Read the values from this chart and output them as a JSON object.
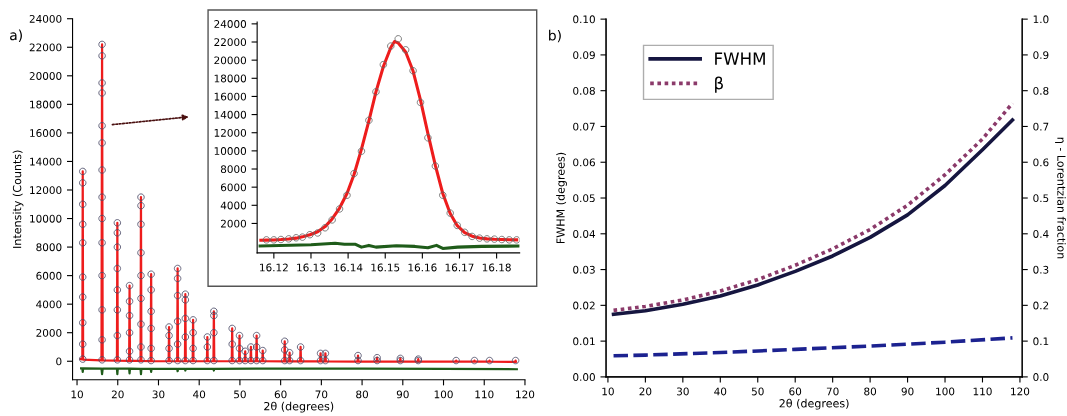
{
  "chart_data": [
    {
      "type": "line",
      "title": "a)",
      "xlabel": "2θ (degrees)",
      "ylabel": "Intensity (Counts)",
      "xlim": [
        8.9,
        120
      ],
      "ylim": [
        -1300,
        24000
      ],
      "xticks": [
        10,
        20,
        30,
        40,
        50,
        60,
        70,
        80,
        90,
        100,
        110,
        120
      ],
      "yticks": [
        0,
        2000,
        4000,
        6000,
        8000,
        10000,
        12000,
        14000,
        16000,
        18000,
        20000,
        22000,
        24000
      ],
      "grid": false,
      "series": [
        {
          "type": "scatter",
          "color": "#4a4a66",
          "marker": "circle",
          "x": [
            11.4,
            11.4,
            11.4,
            11.4,
            11.4,
            11.4,
            11.4,
            11.4,
            11.4,
            11.4,
            16.15,
            16.15,
            16.15,
            16.15,
            16.15,
            16.15,
            16.15,
            16.15,
            16.15,
            16.15,
            16.15,
            16.15,
            16.15,
            16.15,
            19.9,
            19.9,
            19.9,
            19.9,
            19.9,
            19.9,
            19.9,
            19.9,
            22.9,
            22.9,
            22.9,
            22.9,
            22.9,
            22.9,
            25.7,
            25.7,
            25.7,
            25.7,
            25.7,
            25.7,
            25.7,
            25.7,
            25.7,
            28.2,
            28.2,
            28.2,
            28.2,
            28.2,
            28.2,
            32.6,
            32.6,
            32.6,
            32.6,
            34.7,
            34.7,
            34.7,
            34.7,
            34.7,
            34.7,
            36.6,
            36.6,
            36.6,
            36.6,
            36.6,
            38.5,
            38.5,
            38.5,
            38.5,
            42.0,
            42.0,
            42.0,
            43.6,
            43.6,
            43.6,
            43.6,
            48.1,
            48.1,
            48.1,
            49.9,
            49.9,
            49.9,
            51.3,
            51.3,
            52.7,
            52.7,
            54.1,
            54.1,
            54.1,
            55.6,
            55.6,
            61.0,
            61.0,
            61.0,
            62.2,
            62.2,
            64.9,
            64.9,
            69.8,
            69.8,
            71.0,
            71.0,
            79.0,
            79.0,
            83.7,
            83.7,
            89.4,
            89.4,
            93.8,
            93.8,
            103.1,
            107.6,
            111.3,
            117.7
          ],
          "values": [
            13300,
            12500,
            11000,
            9600,
            8300,
            5900,
            4500,
            2700,
            1200,
            150,
            22200,
            21400,
            19500,
            18800,
            16500,
            15300,
            13400,
            11500,
            10000,
            8300,
            6000,
            3600,
            1500,
            100,
            9700,
            9000,
            8000,
            6500,
            5000,
            3600,
            1800,
            100,
            5300,
            4200,
            3200,
            2000,
            700,
            100,
            11500,
            10900,
            9600,
            7600,
            6000,
            4400,
            2600,
            1000,
            100,
            6100,
            5000,
            3500,
            2300,
            900,
            50,
            2400,
            1800,
            900,
            50,
            6500,
            5800,
            4600,
            2800,
            1200,
            50,
            4700,
            4300,
            3000,
            1700,
            50,
            2900,
            2000,
            900,
            50,
            1700,
            1000,
            50,
            3500,
            3200,
            2000,
            50,
            2300,
            1200,
            50,
            1800,
            900,
            50,
            700,
            50,
            1000,
            50,
            1800,
            1000,
            50,
            750,
            50,
            1400,
            800,
            50,
            600,
            50,
            1000,
            50,
            550,
            50,
            550,
            50,
            400,
            50,
            250,
            50,
            200,
            50,
            150,
            50,
            50,
            50,
            50,
            50
          ]
        },
        {
          "color": "#ee1c1c",
          "marker": "none",
          "line_style": "solid",
          "x": [
            10.9,
            11.3,
            11.4,
            11.5,
            16.0,
            16.15,
            16.3,
            19.8,
            19.9,
            20.0,
            22.8,
            22.9,
            23.0,
            25.6,
            25.7,
            25.8,
            28.1,
            28.2,
            28.3,
            32.5,
            32.6,
            32.7,
            34.6,
            34.7,
            34.8,
            36.5,
            36.6,
            36.7,
            38.4,
            38.5,
            38.6,
            41.9,
            42.0,
            42.1,
            43.5,
            43.6,
            43.7,
            48.0,
            48.1,
            48.2,
            49.8,
            49.9,
            50.0,
            51.2,
            51.3,
            51.4,
            52.6,
            52.7,
            52.8,
            54.0,
            54.1,
            54.2,
            55.5,
            55.6,
            55.7,
            60.9,
            61.0,
            61.1,
            62.1,
            62.2,
            62.3,
            64.8,
            64.9,
            65.0,
            69.7,
            69.8,
            69.9,
            70.9,
            71.0,
            71.1,
            78.9,
            79.0,
            79.1,
            83.6,
            83.7,
            83.8,
            89.3,
            89.4,
            89.5,
            93.7,
            93.8,
            93.9,
            103.0,
            103.1,
            103.2,
            107.5,
            107.6,
            107.7,
            111.2,
            111.3,
            111.4,
            117.6,
            117.7,
            117.8
          ],
          "values": [
            150,
            130,
            13300,
            120,
            60,
            22200,
            60,
            40,
            9700,
            40,
            30,
            5300,
            30,
            20,
            11500,
            20,
            10,
            6100,
            10,
            0,
            2400,
            0,
            0,
            6500,
            0,
            0,
            4700,
            0,
            0,
            2900,
            0,
            0,
            1700,
            0,
            0,
            3500,
            0,
            0,
            2300,
            0,
            0,
            1800,
            0,
            0,
            700,
            0,
            0,
            1000,
            0,
            0,
            1800,
            0,
            0,
            750,
            0,
            -10,
            1400,
            -10,
            -10,
            600,
            -10,
            -10,
            1000,
            -10,
            -10,
            550,
            -10,
            -10,
            550,
            -10,
            -20,
            400,
            -20,
            -20,
            250,
            -20,
            -20,
            200,
            -20,
            -20,
            150,
            -20,
            -30,
            50,
            -30,
            -30,
            50,
            -30,
            -30,
            50,
            -30,
            -40,
            50,
            -40
          ]
        },
        {
          "color": "#1f5c1a",
          "marker": "none",
          "line_style": "solid",
          "x": [
            11.0,
            11.3,
            11.4,
            11.5,
            16.0,
            16.15,
            16.3,
            19.8,
            19.9,
            20.0,
            22.8,
            22.9,
            23.0,
            25.6,
            25.7,
            25.8,
            28.1,
            28.2,
            28.3,
            34.6,
            34.7,
            34.8,
            36.5,
            36.6,
            36.7,
            43.5,
            43.6,
            43.7,
            60,
            80,
            100,
            118
          ],
          "values": [
            -500,
            -500,
            -750,
            -500,
            -520,
            -900,
            -520,
            -520,
            -900,
            -520,
            -520,
            -850,
            -520,
            -530,
            -900,
            -530,
            -530,
            -750,
            -530,
            -530,
            -700,
            -530,
            -530,
            -650,
            -530,
            -530,
            -650,
            -530,
            -520,
            -520,
            -540,
            -560
          ]
        }
      ]
    },
    {
      "type": "line",
      "xlim": [
        16.1155,
        16.1862
      ],
      "ylim": [
        -1250,
        24200
      ],
      "xticks": [
        16.12,
        16.13,
        16.14,
        16.15,
        16.16,
        16.17,
        16.18
      ],
      "yticks": [
        2000,
        4000,
        6000,
        8000,
        10000,
        12000,
        14000,
        16000,
        18000,
        20000,
        22000,
        24000
      ],
      "grid": false,
      "series": [
        {
          "color": "#ee1c1c",
          "marker": "none",
          "line_style": "solid",
          "x": [
            16.1165,
            16.118,
            16.12,
            16.1219,
            16.124,
            16.126,
            16.1277,
            16.1297,
            16.1318,
            16.1338,
            16.1357,
            16.1377,
            16.1397,
            16.1416,
            16.1436,
            16.1456,
            16.1475,
            16.1495,
            16.1515,
            16.1525,
            16.1535,
            16.1555,
            16.1575,
            16.1595,
            16.1615,
            16.1635,
            16.1655,
            16.1675,
            16.1694,
            16.1714,
            16.1734,
            16.1754,
            16.1774,
            16.1794,
            16.1814,
            16.1834,
            16.1854
          ],
          "values": [
            150,
            160,
            180,
            220,
            290,
            380,
            520,
            750,
            1080,
            1650,
            2500,
            3700,
            5300,
            7400,
            10200,
            13300,
            16500,
            19300,
            21400,
            22050,
            21900,
            20900,
            18800,
            15600,
            11900,
            8400,
            5300,
            3100,
            1750,
            1000,
            600,
            400,
            300,
            250,
            220,
            200,
            190
          ]
        },
        {
          "type": "scatter",
          "color": "#666666",
          "marker": "circle",
          "x": [
            16.118,
            16.12,
            16.1219,
            16.124,
            16.126,
            16.1277,
            16.1297,
            16.1318,
            16.1338,
            16.1357,
            16.1377,
            16.1397,
            16.1416,
            16.1436,
            16.1456,
            16.1475,
            16.1495,
            16.1515,
            16.1535,
            16.1555,
            16.1575,
            16.1595,
            16.1615,
            16.1635,
            16.1655,
            16.1675,
            16.1694,
            16.1714,
            16.1734,
            16.1754,
            16.1774,
            16.1794,
            16.1814,
            16.1834,
            16.1854
          ],
          "values": [
            190,
            190,
            230,
            300,
            420,
            490,
            760,
            950,
            1520,
            2390,
            3600,
            5110,
            7500,
            9960,
            13370,
            16510,
            19510,
            21550,
            22350,
            21140,
            18830,
            15340,
            11440,
            8330,
            5110,
            3140,
            1780,
            1020,
            570,
            380,
            300,
            270,
            230,
            190,
            190
          ]
        },
        {
          "color": "#1f5c1a",
          "marker": "none",
          "line_style": "solid",
          "x": [
            16.1163,
            16.13,
            16.1365,
            16.139,
            16.142,
            16.1436,
            16.1456,
            16.1475,
            16.153,
            16.158,
            16.1615,
            16.1638,
            16.1655,
            16.1695,
            16.176,
            16.1858
          ],
          "values": [
            -490,
            -340,
            -190,
            -300,
            -300,
            -610,
            -420,
            -610,
            -450,
            -530,
            -680,
            -420,
            -760,
            -610,
            -530,
            -490
          ]
        }
      ]
    },
    {
      "type": "line",
      "title": "b)",
      "xlabel": "2θ (degrees)",
      "ylabel": "FWHM (degrees)",
      "y2label": "η - Lorentzian fraction",
      "xlim": [
        9.5,
        120.6
      ],
      "ylim": [
        0,
        0.1
      ],
      "y2lim": [
        0,
        1.0
      ],
      "legend": "top left",
      "grid": false,
      "xticks": [
        10,
        20,
        30,
        40,
        50,
        60,
        70,
        80,
        90,
        100,
        110,
        120
      ],
      "yticks": [
        {
          "value": 0,
          "label": "0.00"
        },
        {
          "value": 0.01,
          "label": "0.01"
        },
        {
          "value": 0.02,
          "label": "0.02"
        },
        {
          "value": 0.03,
          "label": "0.03"
        },
        {
          "value": 0.04,
          "label": "0.04"
        },
        {
          "value": 0.05,
          "label": "0.05"
        },
        {
          "value": 0.06,
          "label": "0.06"
        },
        {
          "value": 0.07,
          "label": "0.07"
        },
        {
          "value": 0.08,
          "label": "0.08"
        },
        {
          "value": 0.09,
          "label": "0.09"
        },
        {
          "value": 0.1,
          "label": "0.10"
        }
      ],
      "y2ticks": [
        {
          "value": 0,
          "label": "0.0"
        },
        {
          "value": 0.1,
          "label": "0.1"
        },
        {
          "value": 0.2,
          "label": "0.2"
        },
        {
          "value": 0.3,
          "label": "0.3"
        },
        {
          "value": 0.4,
          "label": "0.4"
        },
        {
          "value": 0.5,
          "label": "0.5"
        },
        {
          "value": 0.6,
          "label": "0.6"
        },
        {
          "value": 0.7,
          "label": "0.7"
        },
        {
          "value": 0.8,
          "label": "0.8"
        },
        {
          "value": 0.9,
          "label": "0.9"
        },
        {
          "value": 1.0,
          "label": "1.0"
        }
      ],
      "series": [
        {
          "name": "FWHM",
          "color": "#161640",
          "marker": "none",
          "line_style": "solid",
          "x": [
            11.5,
            20,
            30,
            40,
            50,
            60,
            70,
            80,
            90,
            100,
            110,
            118
          ],
          "values": [
            0.0175,
            0.0185,
            0.0203,
            0.0226,
            0.0257,
            0.0295,
            0.0338,
            0.039,
            0.0453,
            0.0535,
            0.0635,
            0.0718
          ]
        },
        {
          "name": "β",
          "color": "#8b3a6a",
          "marker": "none",
          "line_style": "dotted",
          "x": [
            11.5,
            20,
            30,
            40,
            50,
            60,
            70,
            80,
            90,
            100,
            110,
            118
          ],
          "values": [
            0.0186,
            0.0197,
            0.0215,
            0.024,
            0.0272,
            0.0312,
            0.0358,
            0.0412,
            0.048,
            0.0565,
            0.0665,
            0.0765
          ]
        },
        {
          "color": "#1c2290",
          "marker": "none",
          "line_style": "dashed",
          "axis": "y2",
          "x": [
            11.5,
            20,
            40,
            60,
            80,
            100,
            118
          ],
          "values": [
            0.059,
            0.061,
            0.068,
            0.077,
            0.086,
            0.097,
            0.109
          ]
        }
      ]
    }
  ]
}
